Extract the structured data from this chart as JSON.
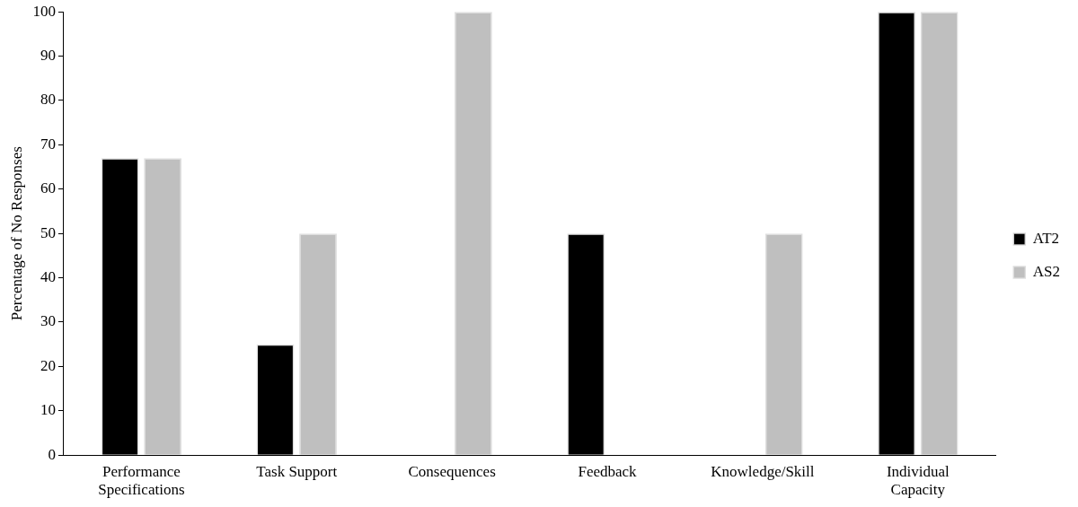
{
  "chart_data": {
    "type": "bar",
    "ylabel": "Percentage of No Responses",
    "categories": [
      "Performance Specifications",
      "Task Support",
      "Consequences",
      "Feedback",
      "Knowledge/Skill",
      "Individual Capacity"
    ],
    "series": [
      {
        "name": "AT2",
        "color": "#000000",
        "values": [
          67,
          25,
          0,
          50,
          0,
          100
        ]
      },
      {
        "name": "AS2",
        "color": "#bfbfbf",
        "values": [
          67,
          50,
          100,
          0,
          50,
          100
        ]
      }
    ],
    "ylim": [
      0,
      100
    ],
    "yticks": [
      0,
      10,
      20,
      30,
      40,
      50,
      60,
      70,
      80,
      90,
      100
    ],
    "grid": false,
    "legend": "right"
  }
}
